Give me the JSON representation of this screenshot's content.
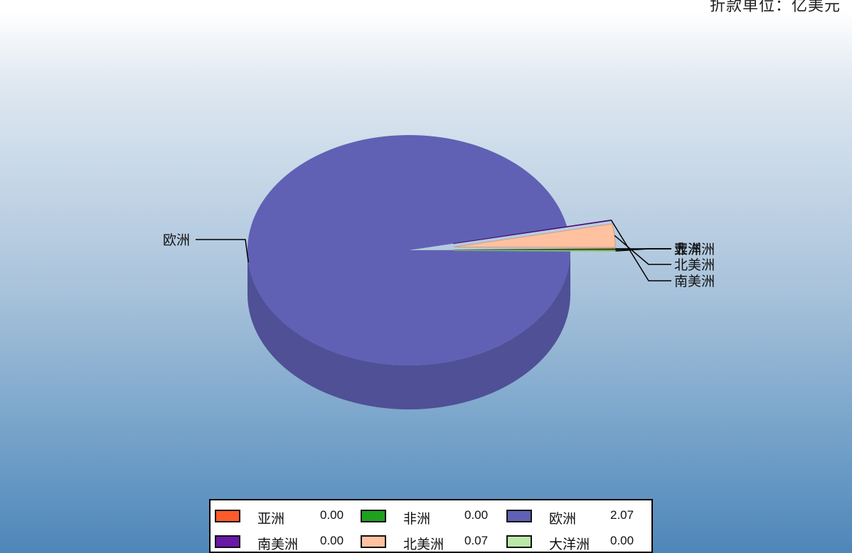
{
  "header": {
    "unit_note": "折款单位：亿美元"
  },
  "chart_data": {
    "type": "pie",
    "title": "",
    "legend_position": "bottom",
    "slices": [
      {
        "label": "亚洲",
        "value": 0.0,
        "value_label": "0.00",
        "color": "#ff5a2a",
        "side_color": "#b8401c"
      },
      {
        "label": "非洲",
        "value": 0.0,
        "value_label": "0.00",
        "color": "#1fa01f",
        "side_color": "#137013"
      },
      {
        "label": "欧洲",
        "value": 2.07,
        "value_label": "2.07",
        "color": "#6061b4",
        "side_color": "#4f5096"
      },
      {
        "label": "南美洲",
        "value": 0.0,
        "value_label": "0.00",
        "color": "#6a18a8",
        "side_color": "#4a0b78"
      },
      {
        "label": "北美洲",
        "value": 0.07,
        "value_label": "0.07",
        "color": "#ffc1a0",
        "side_color": "#d09a7e"
      },
      {
        "label": "大洋洲",
        "value": 0.0,
        "value_label": "0.00",
        "color": "#b9e8a8",
        "side_color": "#8fbf80"
      }
    ]
  }
}
